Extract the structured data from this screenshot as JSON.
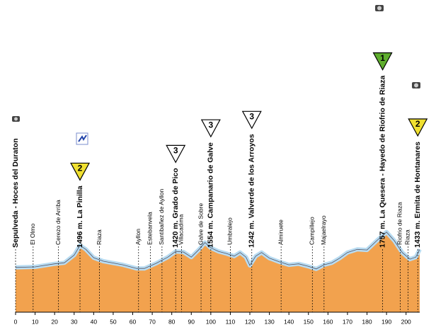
{
  "chart_data": {
    "type": "area",
    "x": [
      0,
      10,
      20,
      25,
      30,
      33,
      36,
      40,
      45,
      55,
      62,
      66,
      72,
      78,
      82,
      86,
      90,
      94,
      97,
      100,
      104,
      108,
      112,
      115,
      118,
      120,
      123,
      126,
      130,
      135,
      140,
      145,
      150,
      154,
      158,
      162,
      166,
      170,
      175,
      180,
      185,
      190,
      194,
      198,
      202,
      205,
      207
    ],
    "values": [
      1070,
      1080,
      1140,
      1160,
      1310,
      1496,
      1420,
      1260,
      1190,
      1120,
      1050,
      1050,
      1150,
      1270,
      1380,
      1370,
      1270,
      1420,
      1554,
      1450,
      1380,
      1340,
      1290,
      1360,
      1270,
      1110,
      1290,
      1360,
      1250,
      1180,
      1120,
      1140,
      1090,
      1040,
      1120,
      1160,
      1250,
      1360,
      1420,
      1410,
      1590,
      1757,
      1590,
      1360,
      1230,
      1270,
      1420
    ],
    "color": "#f2a24e",
    "outline": "#b8dcf2",
    "xlim": [
      0,
      207
    ],
    "ylim": [
      200,
      2140
    ],
    "xticks": [
      0,
      10,
      20,
      30,
      40,
      50,
      60,
      70,
      80,
      90,
      100,
      110,
      120,
      130,
      140,
      150,
      160,
      170,
      180,
      190,
      200
    ],
    "places": [
      {
        "label": "Sepulveda - Hoces del Duraton",
        "km": 0,
        "bold": true
      },
      {
        "label": "El Olmo",
        "km": 9
      },
      {
        "label": "Cerezo de Arriba",
        "km": 22
      },
      {
        "label": "1496 m. La Pinilla",
        "km": 33,
        "bold": true,
        "category": "2",
        "color": "#f0e030"
      },
      {
        "label": "Riaza",
        "km": 43
      },
      {
        "label": "Ayllon",
        "km": 63
      },
      {
        "label": "Estebanvela",
        "km": 69
      },
      {
        "label": "Santibañez de Ayllon",
        "km": 75
      },
      {
        "label": "1420 m. Grado de Pico",
        "km": 82,
        "bold": true,
        "category": "3",
        "color": "#ffffff"
      },
      {
        "label": "Villacadima",
        "km": 85
      },
      {
        "label": "Galve de Sobre",
        "km": 95
      },
      {
        "label": "1554 m. Campanario de Galve",
        "km": 100,
        "bold": true,
        "category": "3",
        "color": "#ffffff"
      },
      {
        "label": "Umbralejo",
        "km": 110
      },
      {
        "label": "1242 m. Valverde de los Arroyos",
        "km": 121,
        "bold": true,
        "category": "3",
        "color": "#ffffff"
      },
      {
        "label": "Almiruete",
        "km": 136
      },
      {
        "label": "Campillejo",
        "km": 152
      },
      {
        "label": "Majaelrayo",
        "km": 158
      },
      {
        "label": "1757 m. La Quesera - Hayedo de Riofrio de Riaza",
        "km": 188,
        "bold": true,
        "category": "1",
        "color": "#5fae2e"
      },
      {
        "label": "Riofrio de Riaza",
        "km": 197
      },
      {
        "label": "Riaza",
        "km": 201
      },
      {
        "label": "1433 m. Ermita de Hontanares",
        "km": 206,
        "bold": true,
        "category": "2",
        "color": "#f0e030"
      }
    ]
  }
}
